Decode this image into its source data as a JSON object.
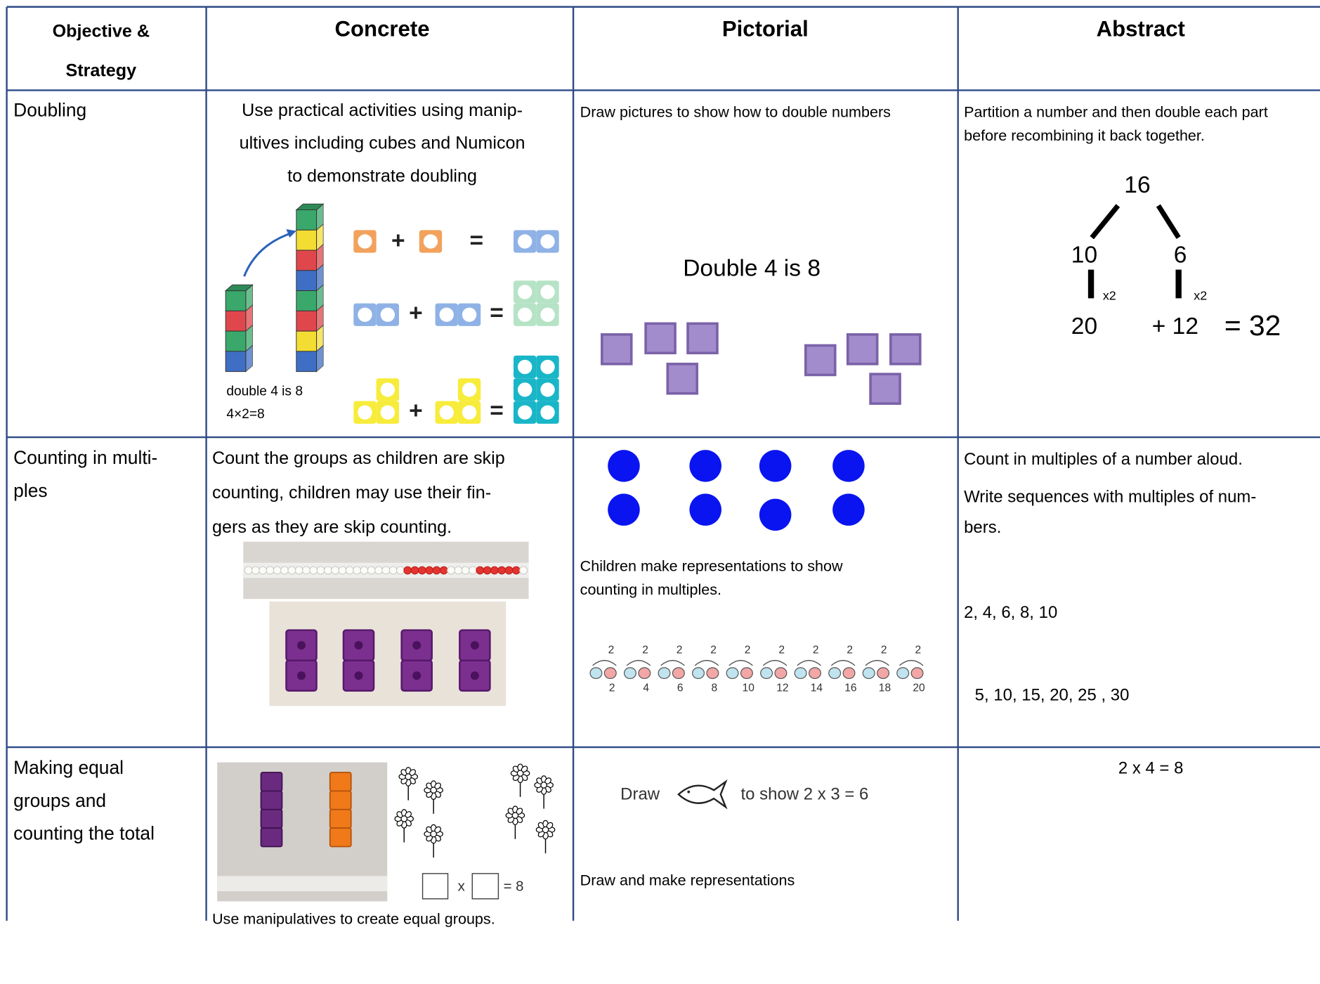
{
  "table": {
    "header": {
      "objective": [
        "Objective &",
        "Strategy"
      ],
      "concrete": "Concrete",
      "pictorial": "Pictorial",
      "abstract": "Abstract"
    },
    "rows": [
      {
        "objective": [
          "Doubling"
        ],
        "concrete": {
          "text": [
            "Use practical activities using manip-",
            "ultives including cubes and Numicon",
            "to demonstrate doubling"
          ],
          "caption": [
            "double 4 is 8",
            "4×2=8"
          ],
          "plus": "+",
          "equals": "="
        },
        "pictorial": {
          "text": "Draw pictures to show how to double numbers",
          "figure_title": "Double 4 is 8"
        },
        "abstract": {
          "text": [
            "Partition a number and then double each part",
            "before recombining it back together."
          ],
          "tree": {
            "top": "16",
            "left": "10",
            "right": "6",
            "times": "x2",
            "left_result": "20",
            "right_result": "+ 12",
            "total": "= 32"
          }
        }
      },
      {
        "objective": [
          "Counting in multi-",
          "ples"
        ],
        "concrete": {
          "text": [
            "Count the groups as children are skip",
            "counting, children may use their fin-",
            "gers as they are skip counting."
          ]
        },
        "pictorial": {
          "text": [
            "Children make representations to show",
            "counting in multiples."
          ],
          "jump": "2",
          "marks": [
            "2",
            "4",
            "6",
            "8",
            "10",
            "12",
            "14",
            "16",
            "18",
            "20"
          ]
        },
        "abstract": {
          "text": [
            "Count in multiples of a number aloud.",
            "Write sequences with multiples of num-",
            "bers."
          ],
          "sequences": [
            "2, 4, 6, 8, 10",
            "5, 10, 15, 20, 25 , 30"
          ]
        }
      },
      {
        "objective": [
          "Making equal",
          "groups and",
          "counting the total"
        ],
        "concrete": {
          "times": "x",
          "equals": "= 8",
          "caption": "Use manipulatives to create equal groups."
        },
        "pictorial": {
          "draw": "Draw",
          "instruction": "to show 2 x 3 = 6",
          "text": "Draw and make representations"
        },
        "abstract": {
          "text": "2 x 4 = 8"
        }
      }
    ]
  }
}
